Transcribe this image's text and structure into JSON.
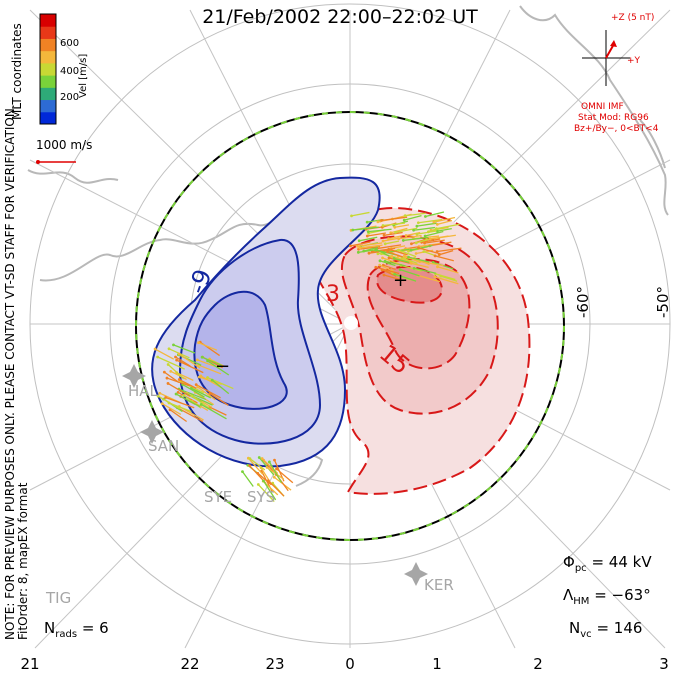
{
  "title": "21/Feb/2002 22:00–22:02 UT",
  "side_note_line1": "NOTE: FOR PREVIEW PURPOSES ONLY. PLEASE CONTACT VT-SD STAFF FOR VERIFICATION.",
  "side_note_line2": "FitOrder: 8, mapEX format",
  "coordinates": "MLT coordinates",
  "legend": {
    "title": "Vel [m/s]",
    "ticks": [
      "200",
      "400",
      "600"
    ],
    "colors": [
      "#0028d8",
      "#2d6bd4",
      "#2eaa78",
      "#7ad23a",
      "#c8d834",
      "#f4b73b",
      "#f08224",
      "#e83818",
      "#d80000"
    ]
  },
  "scale_vector_label": "1000 m/s",
  "imf": {
    "z_label": "+Z (5 nT)",
    "y_label": "+Y",
    "source": "OMNI IMF",
    "model": "Stat Mod: RG96",
    "model_params": "Bz+/By−, 0<BT<4"
  },
  "stats": {
    "phi_symbol": "Φ",
    "phi_sub": "pc",
    "phi_value": "= 44 kV",
    "lambda_symbol": "Λ",
    "lambda_sub": "HM",
    "lambda_value": "= −63°",
    "nvc_symbol": "N",
    "nvc_sub": "vc",
    "nvc_value": "= 146",
    "nrads_symbol": "N",
    "nrads_sub": "rads",
    "nrads_value": "= 6"
  },
  "mlt_ticks": [
    "21",
    "22",
    "23",
    "0",
    "1",
    "2",
    "3"
  ],
  "latitude_labels": [
    "-60°",
    "-50°"
  ],
  "contour_labels": [
    "-9",
    "3",
    "15"
  ],
  "polarity_markers": [
    "+",
    "−"
  ],
  "stations": [
    "HAL",
    "SAN",
    "SYE",
    "SYS",
    "KER",
    "TIG"
  ],
  "colors": {
    "negative_contour": "#1428a0",
    "positive_contour": "#d81818",
    "negative_fill": "#d8d8f0",
    "positive_fill": "#f4dada",
    "hmb": "#7ad23a",
    "imf": "#e00000",
    "grid": "#bbbbbb"
  }
}
